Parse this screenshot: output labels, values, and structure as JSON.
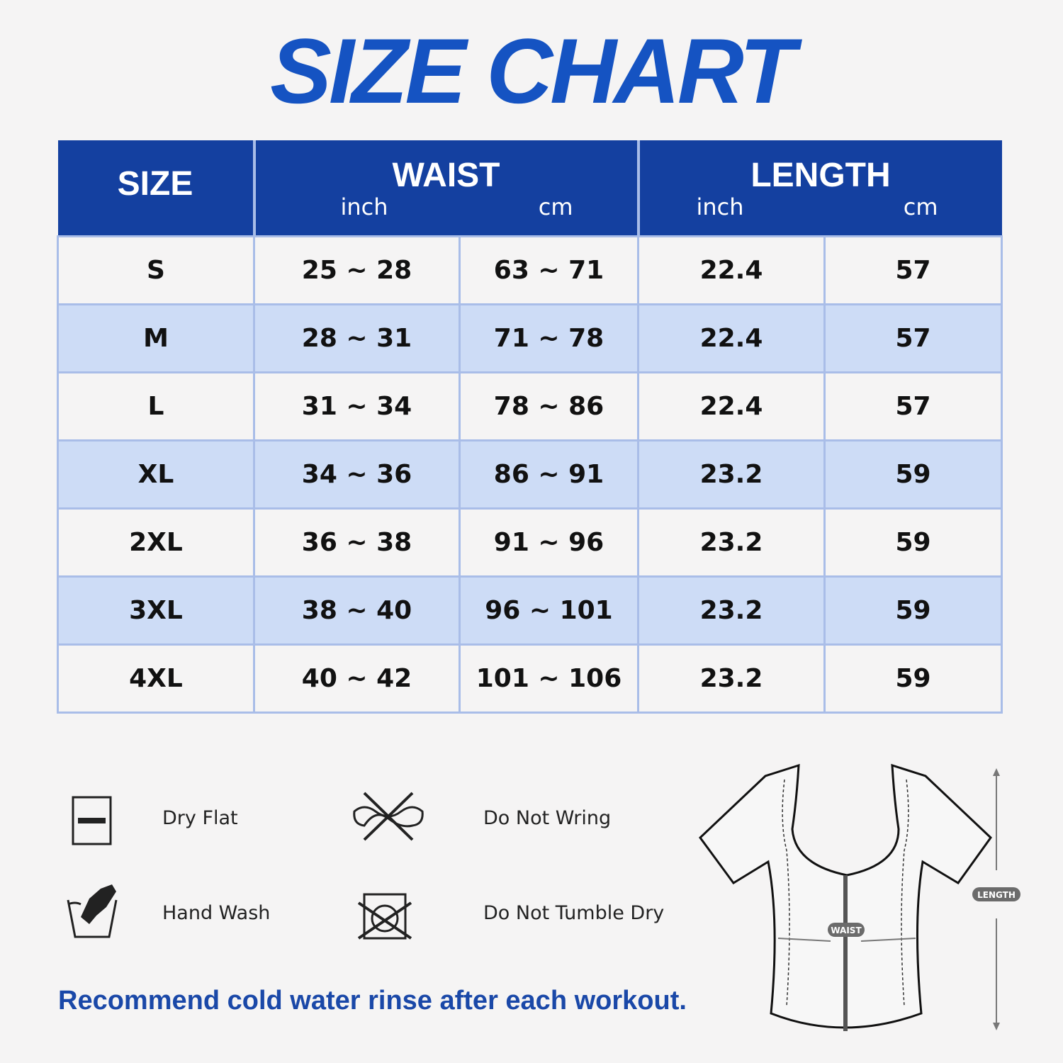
{
  "title": "SIZE CHART",
  "header": {
    "size": "SIZE",
    "waist": "WAIST",
    "length": "LENGTH",
    "inch": "inch",
    "cm": "cm"
  },
  "rows": [
    {
      "size": "S",
      "waist_in": "25 ~ 28",
      "waist_cm": "63 ~ 71",
      "length_in": "22.4",
      "length_cm": "57"
    },
    {
      "size": "M",
      "waist_in": "28 ~ 31",
      "waist_cm": "71 ~ 78",
      "length_in": "22.4",
      "length_cm": "57"
    },
    {
      "size": "L",
      "waist_in": "31 ~ 34",
      "waist_cm": "78 ~ 86",
      "length_in": "22.4",
      "length_cm": "57"
    },
    {
      "size": "XL",
      "waist_in": "34 ~ 36",
      "waist_cm": "86 ~ 91",
      "length_in": "23.2",
      "length_cm": "59"
    },
    {
      "size": "2XL",
      "waist_in": "36 ~ 38",
      "waist_cm": "91 ~ 96",
      "length_in": "23.2",
      "length_cm": "59"
    },
    {
      "size": "3XL",
      "waist_in": "38 ~ 40",
      "waist_cm": "96 ~ 101",
      "length_in": "23.2",
      "length_cm": "59"
    },
    {
      "size": "4XL",
      "waist_in": "40 ~ 42",
      "waist_cm": "101 ~ 106",
      "length_in": "23.2",
      "length_cm": "59"
    }
  ],
  "care": {
    "dry_flat": "Dry Flat",
    "do_not_wring": "Do Not Wring",
    "hand_wash": "Hand Wash",
    "do_not_tumble_dry": "Do Not Tumble Dry"
  },
  "note": "Recommend cold water rinse after each workout.",
  "diagram": {
    "waist_label": "WAIST",
    "length_label": "LENGTH"
  },
  "colors": {
    "title": "#1553c2",
    "header_bg": "#1440a0",
    "row_alt": "#cddcf6",
    "note": "#1a48a8"
  }
}
